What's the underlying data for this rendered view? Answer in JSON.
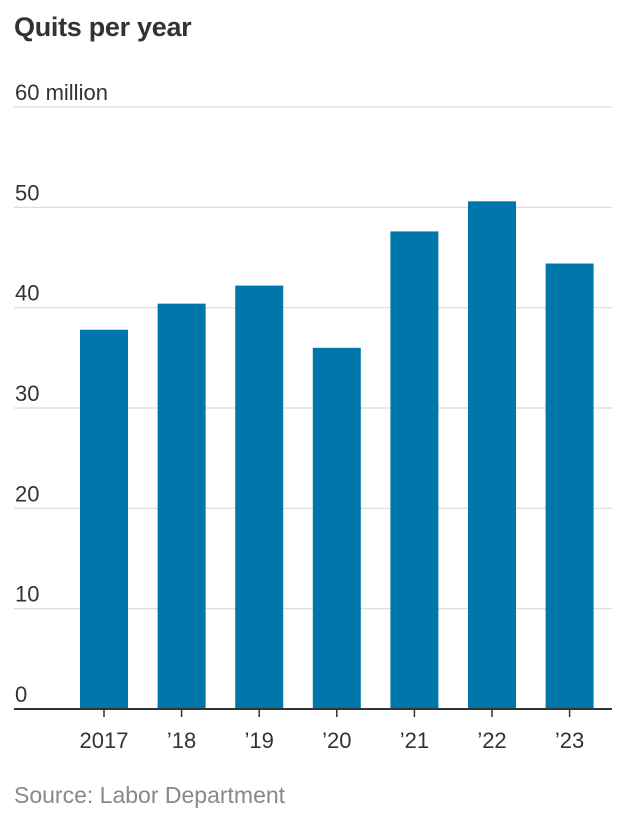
{
  "chart_data": {
    "type": "bar",
    "title": "Quits per year",
    "ylabel": "60 million",
    "xlabel": "",
    "categories": [
      "2017",
      "’18",
      "’19",
      "’20",
      "’21",
      "’22",
      "’23"
    ],
    "values": [
      37.8,
      40.4,
      42.2,
      36.0,
      47.6,
      50.6,
      44.4
    ],
    "ylim": [
      0,
      60
    ],
    "yticks": [
      0,
      10,
      20,
      30,
      40,
      50,
      60
    ],
    "ytick_labels": [
      "0",
      "10",
      "20",
      "30",
      "40",
      "50",
      "60 million"
    ],
    "grid": true,
    "source": "Source: Labor Department",
    "colors": {
      "bar": "#0077aa",
      "grid": "#d9d9d9",
      "axis": "#333333"
    }
  }
}
